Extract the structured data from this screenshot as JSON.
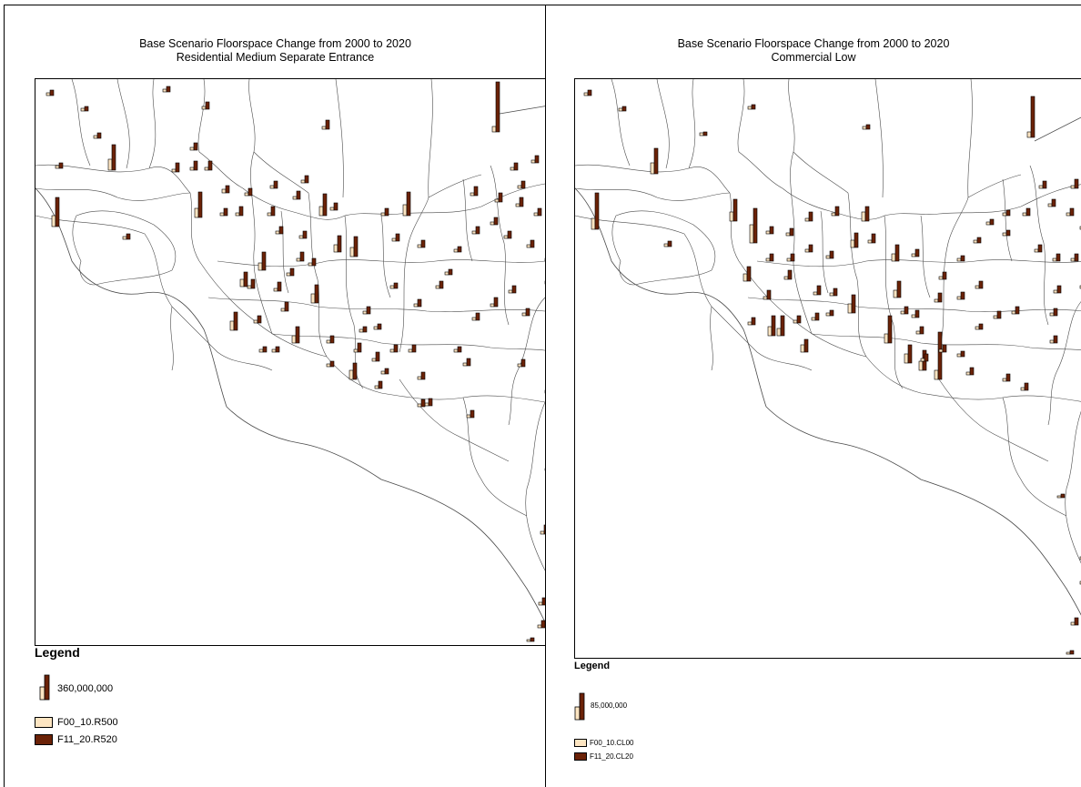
{
  "colors": {
    "background": "#ffffff",
    "boundary": "#4a4a4a",
    "light": "#fde5c2",
    "dark": "#6b2207"
  },
  "maps": [
    {
      "title_line1": "Base Scenario Floorspace Change from 2000 to 2020",
      "title_line2": "Residential Medium Separate Entrance",
      "legend": {
        "title": "Legend",
        "scale_value": "360,000,000",
        "series": [
          "F00_10.R500",
          "F11_20.R520"
        ]
      }
    },
    {
      "title_line1": "Base Scenario Floorspace Change from 2000 to 2020",
      "title_line2": "Commercial Low",
      "legend": {
        "title": "Legend",
        "scale_value": "85,000,000",
        "series": [
          "F00_10.CL00",
          "F11_20.CL20"
        ]
      }
    }
  ]
}
